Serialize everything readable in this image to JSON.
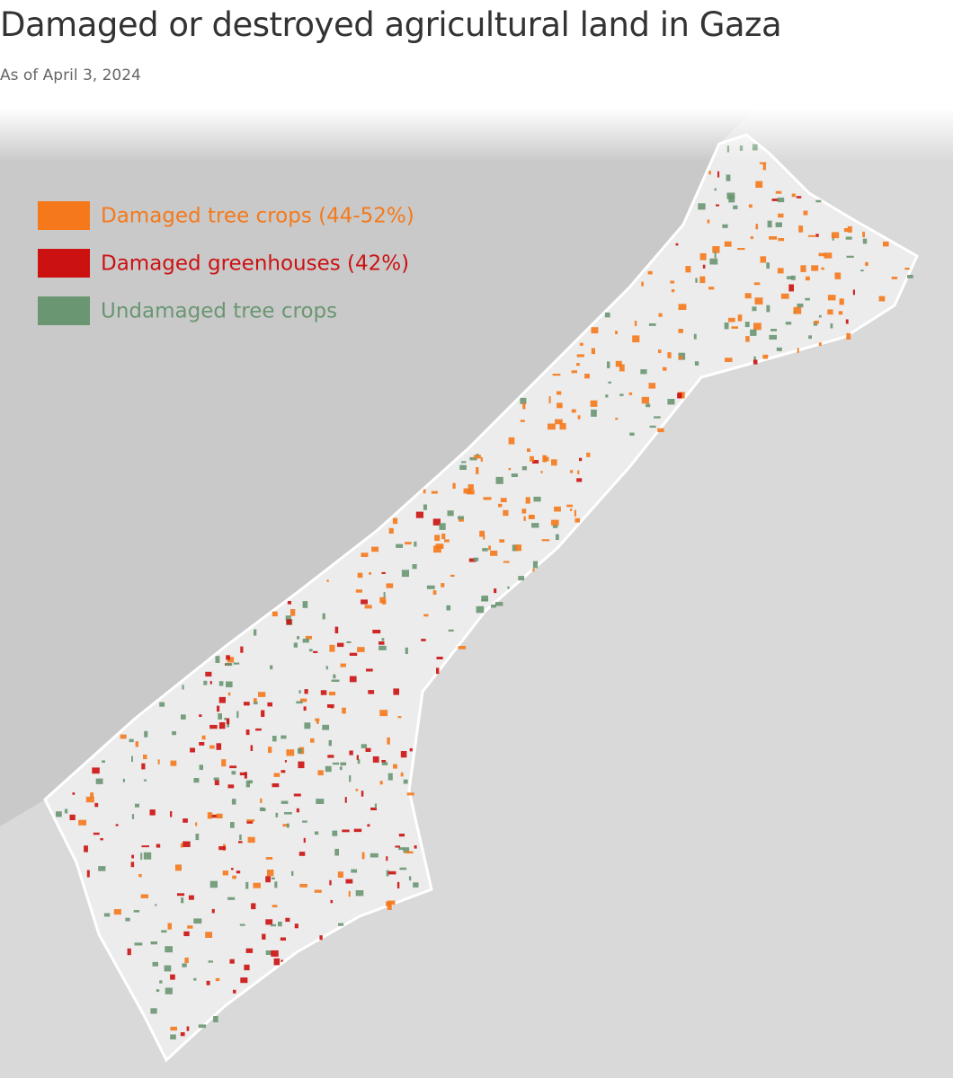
{
  "header": {
    "title": "Damaged or destroyed agricultural land in Gaza",
    "subtitle": "As of April 3, 2024"
  },
  "legend": [
    {
      "label": "Damaged tree crops (44-52%)",
      "color": "#f5791b"
    },
    {
      "label": "Damaged greenhouses (42%)",
      "color": "#cc1111"
    },
    {
      "label": "Undamaged tree crops",
      "color": "#6a9672"
    }
  ]
}
